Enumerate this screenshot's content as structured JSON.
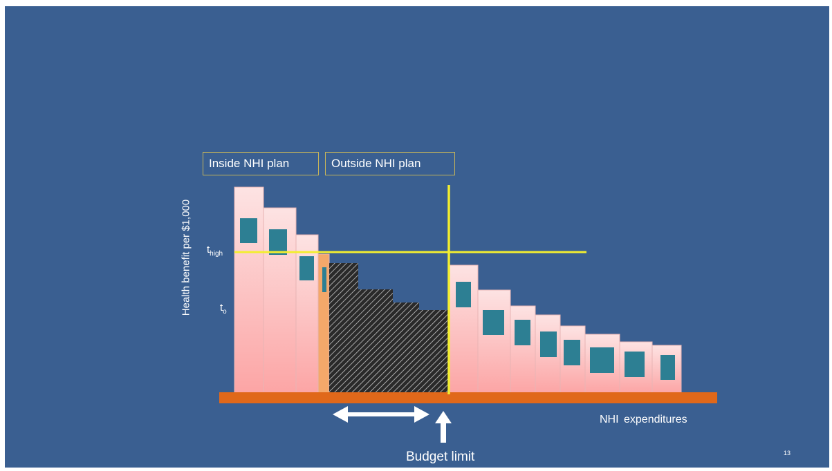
{
  "slide": {
    "background": "#3a5f91",
    "page_number": "13"
  },
  "labels": {
    "inside_plan": "Inside NHI plan",
    "outside_plan": "Outside NHI plan",
    "y_axis": "Health benefit per $1,000",
    "x_axis": "NHI expenditures",
    "budget_limit": "Budget limit",
    "t_high_base": "t",
    "t_high_sub": "high",
    "t_o_base": "t",
    "t_o_sub": "o"
  },
  "colors": {
    "bar_fill_top": "#fde3e3",
    "bar_fill_bottom": "#fca5a5",
    "bar_stroke": "#e8b4b4",
    "inner_marker": "#2d7f93",
    "hatched_fill": "#2a2a2a",
    "hatch_stroke": "#c8c8c8",
    "partial_bar": "#f4a86a",
    "axis_bar": "#e0681a",
    "threshold_line": "#f2ee30",
    "arrow": "#ffffff"
  },
  "legend_icons": {
    "double_arrow": "double-arrow-icon",
    "up_arrow": "up-arrow-icon"
  }
}
